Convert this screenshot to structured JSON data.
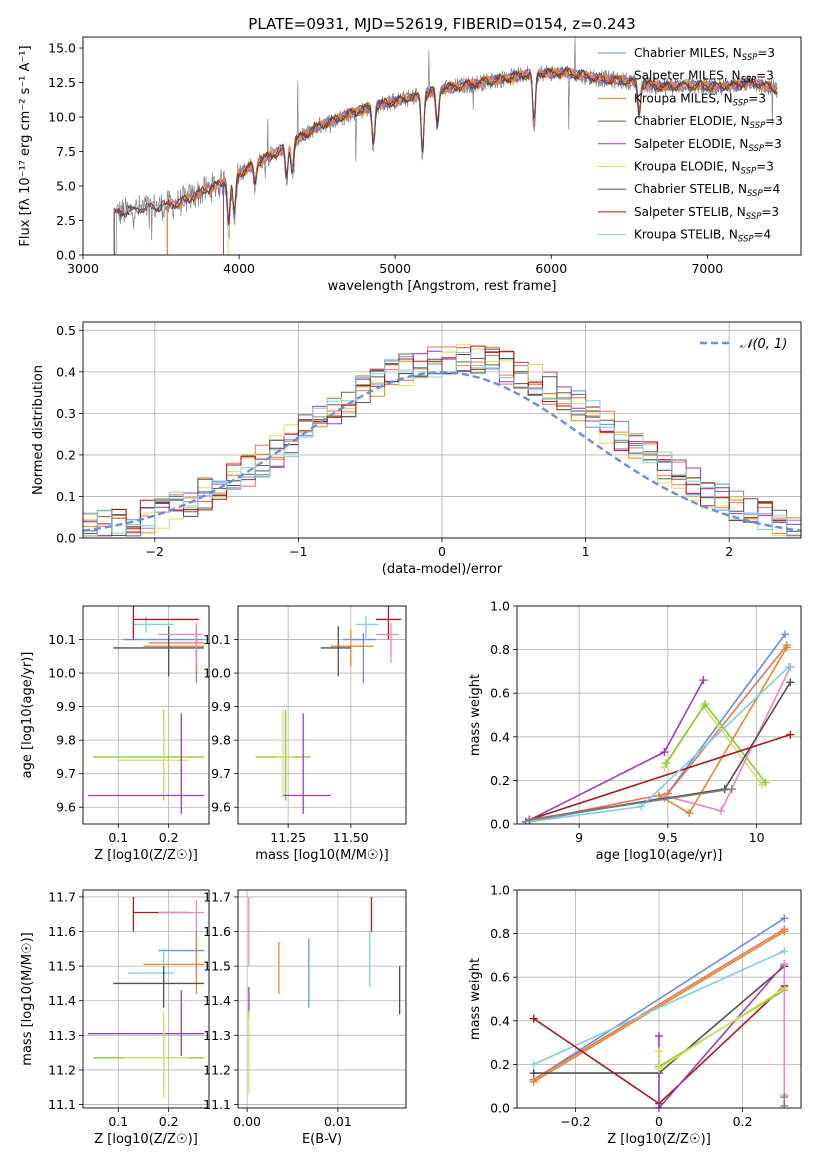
{
  "figure_title": "PLATE=0931, MJD=52619, FIBERID=0154, z=0.243",
  "colors": {
    "Chabrier MILES": "#6a8fd8",
    "Salpeter MILES": "#e8735a",
    "Kroupa MILES": "#e08a2c",
    "Chabrier ELODIE": "#5a6a50",
    "Salpeter ELODIE": "#9a3fb0",
    "Kroupa ELODIE": "#d8e060",
    "Chabrier STELIB": "#505050",
    "Salpeter STELIB": "#a51c1c",
    "Kroupa STELIB": "#80d0d8",
    "Green": "#8cc83c",
    "Pink": "#e88ac0",
    "Gray": "#808080",
    "Normal": "#6a8fd8"
  },
  "chart_data": [
    {
      "id": "spectrum",
      "type": "line",
      "title": "PLATE=0931, MJD=52619, FIBERID=0154, z=0.243",
      "xlabel": "wavelength [Angstrom, rest frame]",
      "ylabel": "Flux [fλ 10⁻¹⁷ erg cm⁻² s⁻¹ A⁻¹]",
      "xlim": [
        3000,
        7600
      ],
      "ylim": [
        0,
        15.8
      ],
      "xticks": [
        3000,
        4000,
        5000,
        6000,
        7000
      ],
      "yticks": [
        0.0,
        2.5,
        5.0,
        7.5,
        10.0,
        12.5,
        15.0
      ],
      "legend": [
        "Chabrier MILES, N_SSP=3",
        "Salpeter MILES, N_SSP=3",
        "Kroupa MILES, N_SSP=3",
        "Chabrier ELODIE, N_SSP=3",
        "Salpeter ELODIE, N_SSP=3",
        "Kroupa ELODIE, N_SSP=3",
        "Chabrier STELIB, N_SSP=4",
        "Salpeter STELIB, N_SSP=3",
        "Kroupa STELIB, N_SSP=4"
      ],
      "legend_position": "right",
      "continuum": {
        "wavelength": [
          3200,
          3400,
          3600,
          3800,
          3950,
          4100,
          4300,
          4500,
          4700,
          4900,
          5100,
          5300,
          5500,
          5700,
          5900,
          6100,
          6300,
          6500,
          6700,
          6900,
          7100,
          7300,
          7450
        ],
        "flux": [
          3.0,
          3.4,
          3.7,
          4.8,
          5.5,
          6.6,
          7.8,
          9.3,
          10.2,
          10.9,
          11.4,
          12.0,
          12.4,
          12.8,
          13.2,
          13.2,
          12.8,
          12.6,
          12.2,
          12.3,
          12.2,
          12.5,
          12.0
        ]
      },
      "model_start_wavelength": {
        "Chabrier MILES": 3540,
        "Salpeter MILES": 3540,
        "Kroupa MILES": 3540,
        "Chabrier ELODIE": 3900,
        "Salpeter ELODIE": 3900,
        "Kroupa ELODIE": 3930,
        "Chabrier STELIB": 3200,
        "Salpeter STELIB": 3200,
        "Kroupa STELIB": 3200
      }
    },
    {
      "id": "residuals",
      "type": "line",
      "xlabel": "(data-model)/error",
      "ylabel": "Normed distribution",
      "xlim": [
        -2.5,
        2.5
      ],
      "ylim": [
        0,
        0.52
      ],
      "xticks": [
        -2,
        -1,
        0,
        1,
        2
      ],
      "yticks": [
        0.0,
        0.1,
        0.2,
        0.3,
        0.4,
        0.5
      ],
      "legend": [
        "𝒩(0, 1)"
      ],
      "legend_position": "top-right",
      "bin_width": 0.1,
      "histogram_shape": "approximately N(0,1), peak near 0.45 at x = 0.1"
    },
    {
      "id": "age_vs_Z",
      "type": "scatter",
      "xlabel": "Z [log10(Z/Z☉)]",
      "ylabel": "age  [log10(age/yr)]",
      "xlim": [
        0.03,
        0.28
      ],
      "ylim": [
        9.55,
        10.2
      ],
      "xticks": [
        0.1,
        0.2
      ],
      "yticks": [
        9.6,
        9.7,
        9.8,
        9.9,
        10.0,
        10.1
      ],
      "points": [
        {
          "model": "Chabrier MILES",
          "x": 0.255,
          "y": 10.1,
          "xerr": [
            0.11,
            0.27
          ],
          "yerr": [
            9.97,
            10.12
          ]
        },
        {
          "model": "Kroupa MILES",
          "x": 0.255,
          "y": 10.08,
          "xerr": [
            0.15,
            0.27
          ],
          "yerr": [
            10.04,
            10.13
          ]
        },
        {
          "model": "Salpeter MILES",
          "x": 0.255,
          "y": 10.09,
          "xerr": [
            0.16,
            0.27
          ],
          "yerr": [
            10.0,
            10.13
          ]
        },
        {
          "model": "Kroupa STELIB",
          "x": 0.155,
          "y": 10.145,
          "xerr": [
            0.13,
            0.21
          ],
          "yerr": [
            10.12,
            10.17
          ]
        },
        {
          "model": "Salpeter STELIB",
          "x": 0.13,
          "y": 10.16,
          "xerr": [
            0.13,
            0.26
          ],
          "yerr": [
            10.1,
            10.2
          ]
        },
        {
          "model": "Chabrier STELIB",
          "x": 0.2,
          "y": 10.075,
          "xerr": [
            0.09,
            0.27
          ],
          "yerr": [
            9.99,
            10.14
          ]
        },
        {
          "model": "Pink",
          "x": 0.255,
          "y": 10.115,
          "xerr": [
            0.18,
            0.27
          ],
          "yerr": [
            10.03,
            10.15
          ]
        },
        {
          "model": "Green",
          "x": 0.19,
          "y": 9.75,
          "xerr": [
            0.05,
            0.27
          ],
          "yerr": [
            9.62,
            9.89
          ]
        },
        {
          "model": "Kroupa ELODIE",
          "x": 0.19,
          "y": 9.74,
          "xerr": [
            0.1,
            0.24
          ],
          "yerr": [
            9.63,
            9.88
          ]
        },
        {
          "model": "Salpeter ELODIE",
          "x": 0.225,
          "y": 9.635,
          "xerr": [
            0.04,
            0.27
          ],
          "yerr": [
            9.58,
            9.88
          ]
        }
      ]
    },
    {
      "id": "age_vs_mass",
      "type": "scatter",
      "xlabel": "mass [log10(M/M☉)]",
      "ylabel": "",
      "xlim": [
        11.05,
        11.72
      ],
      "ylim": [
        9.55,
        10.2
      ],
      "xticks": [
        11.25,
        11.5
      ],
      "yticks": [
        9.6,
        9.7,
        9.8,
        9.9,
        10.0,
        10.1
      ],
      "points": [
        {
          "model": "Chabrier MILES",
          "x": 11.55,
          "y": 10.1,
          "xerr": [
            11.47,
            11.6
          ],
          "yerr": [
            9.97,
            10.12
          ]
        },
        {
          "model": "Kroupa MILES",
          "x": 11.5,
          "y": 10.08,
          "xerr": [
            11.42,
            11.59
          ],
          "yerr": [
            10.02,
            10.13
          ]
        },
        {
          "model": "Salpeter STELIB",
          "x": 11.65,
          "y": 10.16,
          "xerr": [
            11.6,
            11.7
          ],
          "yerr": [
            10.1,
            10.2
          ]
        },
        {
          "model": "Kroupa STELIB",
          "x": 11.56,
          "y": 10.145,
          "xerr": [
            11.52,
            11.61
          ],
          "yerr": [
            10.1,
            10.17
          ]
        },
        {
          "model": "Chabrier STELIB",
          "x": 11.45,
          "y": 10.075,
          "xerr": [
            11.38,
            11.5
          ],
          "yerr": [
            9.99,
            10.14
          ]
        },
        {
          "model": "Pink",
          "x": 11.66,
          "y": 10.115,
          "xerr": [
            11.6,
            11.69
          ],
          "yerr": [
            10.03,
            10.15
          ]
        },
        {
          "model": "Green",
          "x": 11.24,
          "y": 9.75,
          "xerr": [
            11.12,
            11.34
          ],
          "yerr": [
            9.62,
            9.89
          ]
        },
        {
          "model": "Kroupa ELODIE",
          "x": 11.23,
          "y": 9.75,
          "xerr": [
            11.2,
            11.27
          ],
          "yerr": [
            9.63,
            9.89
          ]
        },
        {
          "model": "Salpeter ELODIE",
          "x": 11.31,
          "y": 9.635,
          "xerr": [
            11.23,
            11.42
          ],
          "yerr": [
            9.58,
            9.88
          ]
        }
      ]
    },
    {
      "id": "mass_weight_vs_age",
      "type": "line",
      "xlabel": "age  [log10(age/yr)]",
      "ylabel": "mass weight",
      "xlim": [
        8.65,
        10.25
      ],
      "ylim": [
        0.0,
        1.0
      ],
      "xticks": [
        9.0,
        9.5,
        10.0
      ],
      "yticks": [
        0.0,
        0.2,
        0.4,
        0.6,
        0.8,
        1.0
      ],
      "series": [
        {
          "model": "Chabrier MILES",
          "x": [
            8.7,
            9.48,
            10.16
          ],
          "y": [
            0.01,
            0.12,
            0.87
          ]
        },
        {
          "model": "Salpeter MILES",
          "x": [
            8.7,
            9.5,
            10.17
          ],
          "y": [
            0.01,
            0.14,
            0.82
          ]
        },
        {
          "model": "Kroupa MILES",
          "x": [
            9.45,
            9.62,
            10.17
          ],
          "y": [
            0.13,
            0.05,
            0.81
          ]
        },
        {
          "model": "Salpeter ELODIE",
          "x": [
            8.7,
            9.48,
            9.7
          ],
          "y": [
            0.01,
            0.33,
            0.66
          ]
        },
        {
          "model": "Kroupa ELODIE",
          "x": [
            9.48,
            9.7,
            10.03
          ],
          "y": [
            0.26,
            0.54,
            0.18
          ]
        },
        {
          "model": "Green",
          "x": [
            9.49,
            9.71,
            10.05
          ],
          "y": [
            0.28,
            0.55,
            0.19
          ]
        },
        {
          "model": "Pink",
          "x": [
            9.48,
            9.8,
            10.19
          ],
          "y": [
            0.13,
            0.06,
            0.72
          ]
        },
        {
          "model": "Chabrier STELIB",
          "x": [
            8.72,
            9.82,
            10.19
          ],
          "y": [
            0.02,
            0.16,
            0.65
          ]
        },
        {
          "model": "Salpeter STELIB",
          "x": [
            8.72,
            10.19
          ],
          "y": [
            0.02,
            0.41
          ]
        },
        {
          "model": "Kroupa STELIB",
          "x": [
            8.72,
            9.35,
            10.18
          ],
          "y": [
            0.01,
            0.08,
            0.72
          ]
        },
        {
          "model": "Gray",
          "x": [
            8.72,
            9.86
          ],
          "y": [
            0.02,
            0.16
          ]
        }
      ]
    },
    {
      "id": "mass_vs_Z",
      "type": "scatter",
      "xlabel": "Z [log10(Z/Z☉)]",
      "ylabel": "mass [log10(M/M☉)]",
      "xlim": [
        0.03,
        0.28
      ],
      "ylim": [
        11.09,
        11.72
      ],
      "xticks": [
        0.1,
        0.2
      ],
      "yticks": [
        11.1,
        11.2,
        11.3,
        11.4,
        11.5,
        11.6,
        11.7
      ],
      "points": [
        {
          "model": "Salpeter STELIB",
          "x": 0.13,
          "y": 11.655,
          "xerr": [
            0.13,
            0.24
          ],
          "yerr": [
            11.6,
            11.7
          ]
        },
        {
          "model": "Pink",
          "x": 0.255,
          "y": 11.655,
          "xerr": [
            0.18,
            0.27
          ],
          "yerr": [
            11.6,
            11.69
          ]
        },
        {
          "model": "Chabrier MILES",
          "x": 0.255,
          "y": 11.545,
          "xerr": [
            0.18,
            0.27
          ],
          "yerr": [
            11.47,
            11.6
          ]
        },
        {
          "model": "Kroupa MILES",
          "x": 0.255,
          "y": 11.505,
          "xerr": [
            0.15,
            0.27
          ],
          "yerr": [
            11.42,
            11.59
          ]
        },
        {
          "model": "Kroupa STELIB",
          "x": 0.19,
          "y": 11.48,
          "xerr": [
            0.12,
            0.21
          ],
          "yerr": [
            11.42,
            11.55
          ]
        },
        {
          "model": "Chabrier STELIB",
          "x": 0.19,
          "y": 11.45,
          "xerr": [
            0.09,
            0.27
          ],
          "yerr": [
            11.38,
            11.5
          ]
        },
        {
          "model": "Salpeter ELODIE",
          "x": 0.225,
          "y": 11.305,
          "xerr": [
            0.04,
            0.27
          ],
          "yerr": [
            11.24,
            11.43
          ]
        },
        {
          "model": "Green",
          "x": 0.19,
          "y": 11.235,
          "xerr": [
            0.05,
            0.27
          ],
          "yerr": [
            11.13,
            11.34
          ]
        },
        {
          "model": "Kroupa ELODIE",
          "x": 0.19,
          "y": 11.235,
          "xerr": [
            0.11,
            0.24
          ],
          "yerr": [
            11.12,
            11.37
          ]
        }
      ]
    },
    {
      "id": "mass_vs_ebv",
      "type": "scatter",
      "xlabel": "E(B-V)",
      "ylabel": "",
      "xlim": [
        -0.001,
        0.0175
      ],
      "ylim": [
        11.09,
        11.72
      ],
      "xticks": [
        0.0,
        0.01
      ],
      "xticklabels": [
        "0.00",
        "0.01"
      ],
      "yticks": [
        11.1,
        11.2,
        11.3,
        11.4,
        11.5,
        11.6,
        11.7
      ],
      "points": [
        {
          "model": "Salpeter ELODIE",
          "x": 0.0002,
          "y": 11.4,
          "yerr": [
            11.35,
            11.44
          ]
        },
        {
          "model": "Pink",
          "x": 0.0002,
          "y": 11.62,
          "yerr": [
            11.5,
            11.7
          ]
        },
        {
          "model": "Kroupa ELODIE",
          "x": 0.0002,
          "y": 11.25,
          "yerr": [
            11.13,
            11.37
          ]
        },
        {
          "model": "Kroupa MILES",
          "x": 0.0035,
          "y": 11.5,
          "yerr": [
            11.42,
            11.57
          ]
        },
        {
          "model": "Chabrier MILES",
          "x": 0.0068,
          "y": 11.48,
          "yerr": [
            11.38,
            11.58
          ]
        },
        {
          "model": "Salpeter STELIB",
          "x": 0.0137,
          "y": 11.655,
          "yerr": [
            11.6,
            11.7
          ]
        },
        {
          "model": "Kroupa STELIB",
          "x": 0.0135,
          "y": 11.54,
          "yerr": [
            11.44,
            11.6
          ]
        },
        {
          "model": "Chabrier STELIB",
          "x": 0.0168,
          "y": 11.43,
          "yerr": [
            11.36,
            11.5
          ]
        }
      ]
    },
    {
      "id": "mass_weight_vs_Z",
      "type": "line",
      "xlabel": "Z [log10(Z/Z☉)]",
      "ylabel": "mass weight",
      "xlim": [
        -0.34,
        0.34
      ],
      "ylim": [
        0.0,
        1.0
      ],
      "xticks": [
        -0.2,
        0.0,
        0.2
      ],
      "yticks": [
        0.0,
        0.2,
        0.4,
        0.6,
        0.8,
        1.0
      ],
      "series": [
        {
          "model": "Chabrier MILES",
          "x": [
            -0.3,
            0.3
          ],
          "y": [
            0.13,
            0.87
          ]
        },
        {
          "model": "Salpeter MILES",
          "x": [
            -0.3,
            0.3
          ],
          "y": [
            0.13,
            0.82
          ]
        },
        {
          "model": "Kroupa MILES",
          "x": [
            -0.3,
            0.3
          ],
          "y": [
            0.12,
            0.81
          ]
        },
        {
          "model": "Kroupa STELIB",
          "x": [
            -0.3,
            0.3
          ],
          "y": [
            0.2,
            0.72
          ]
        },
        {
          "model": "Chabrier STELIB",
          "x": [
            -0.3,
            0.0,
            0.3
          ],
          "y": [
            0.16,
            0.16,
            0.65
          ]
        },
        {
          "model": "Salpeter STELIB",
          "x": [
            -0.3,
            0.0,
            0.3
          ],
          "y": [
            0.41,
            0.02,
            0.56
          ]
        },
        {
          "model": "Salpeter ELODIE",
          "x": [
            0.0,
            0.0,
            0.3
          ],
          "y": [
            0.33,
            0.0,
            0.66
          ]
        },
        {
          "model": "Green",
          "x": [
            0.0,
            0.0,
            0.3
          ],
          "y": [
            0.26,
            0.19,
            0.54
          ]
        },
        {
          "model": "Kroupa ELODIE",
          "x": [
            0.0,
            0.0,
            0.3
          ],
          "y": [
            0.26,
            0.18,
            0.55
          ]
        },
        {
          "model": "Pink",
          "x": [
            0.3,
            0.3
          ],
          "y": [
            0.06,
            0.66
          ]
        },
        {
          "model": "Gray",
          "x": [
            0.3,
            0.3
          ],
          "y": [
            0.01,
            0.05
          ]
        }
      ]
    }
  ]
}
